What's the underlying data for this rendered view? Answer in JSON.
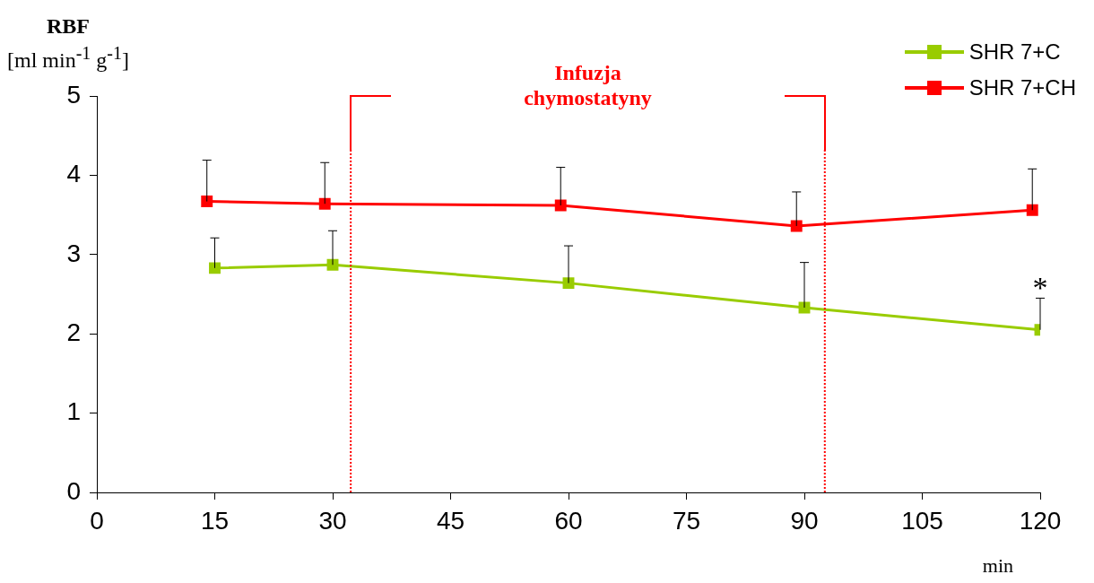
{
  "chart_data": {
    "type": "line",
    "ylabel": "RBF [ml min$^{-1}$ g$^{-1}$]",
    "xlabel": "min",
    "xlim": [
      0,
      120
    ],
    "xticks": [
      0,
      15,
      30,
      45,
      60,
      75,
      90,
      105,
      120
    ],
    "ylim": [
      0,
      5
    ],
    "yticks": [
      0,
      1,
      2,
      3,
      4,
      5
    ],
    "grid": false,
    "legend": "top right",
    "marker": "square",
    "line_style": "solid",
    "series": [
      {
        "name": "SHR 7+C",
        "color": "#99cc00",
        "x": [
          15,
          30,
          60,
          90,
          120
        ],
        "values": [
          2.83,
          2.87,
          2.64,
          2.33,
          2.05
        ],
        "errors": [
          [
            2.83,
            3.21
          ],
          [
            2.87,
            3.3
          ],
          [
            2.64,
            3.11
          ],
          [
            2.33,
            2.9
          ],
          [
            2.05,
            2.45
          ]
        ]
      },
      {
        "name": "SHR 7+CH",
        "color": "#ff0000",
        "x": [
          14,
          29,
          59,
          89,
          119
        ],
        "values": [
          3.67,
          3.64,
          3.62,
          3.36,
          3.56
        ],
        "errors": [
          [
            3.67,
            4.19
          ],
          [
            3.64,
            4.16
          ],
          [
            3.62,
            4.1
          ],
          [
            3.36,
            3.79
          ],
          [
            3.56,
            4.08
          ]
        ]
      }
    ],
    "ref_lines": [
      {
        "axis": "x",
        "value": 32.3,
        "color": "#ff0000",
        "line_style": "dotted"
      },
      {
        "axis": "x",
        "value": 92.6,
        "color": "#ff0000",
        "line_style": "dotted"
      }
    ],
    "annotations": [
      "Infuzja chymostatyny",
      "*"
    ]
  }
}
